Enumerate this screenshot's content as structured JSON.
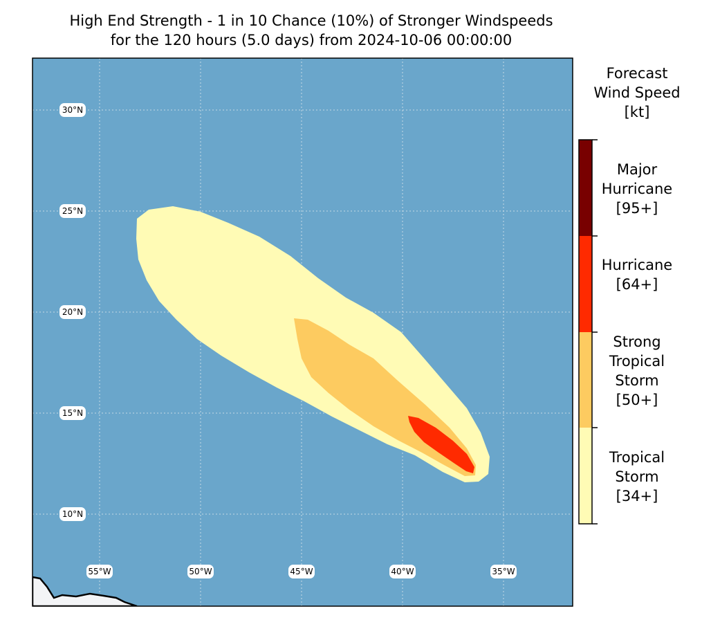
{
  "title": {
    "line1": "High End Strength - 1 in 10 Chance (10%) of Stronger Windspeeds",
    "line2": "for the 120 hours (5.0 days) from 2024-10-06 00:00:00"
  },
  "colors": {
    "ocean": "#6aa6cb",
    "land": "#f3f4f6",
    "tropical_storm": "#fffbb5",
    "strong_tropical_storm": "#fdcb60",
    "hurricane": "#ff2a00",
    "major_hurricane": "#780000"
  },
  "map": {
    "lat_labels": [
      "30°N",
      "25°N",
      "20°N",
      "15°N",
      "10°N"
    ],
    "lon_labels": [
      "55°W",
      "50°W",
      "45°W",
      "40°W",
      "35°W"
    ]
  },
  "legend": {
    "title_lines": [
      "Forecast",
      "Wind Speed",
      "[kt]"
    ],
    "categories": [
      {
        "name": "major-hurricane",
        "lines": [
          "Major",
          "Hurricane",
          "[95+]"
        ],
        "color": "#780000"
      },
      {
        "name": "hurricane",
        "lines": [
          "Hurricane",
          "[64+]"
        ],
        "color": "#ff2a00"
      },
      {
        "name": "strong-tropical-storm",
        "lines": [
          "Strong",
          "Tropical",
          "Storm",
          "[50+]"
        ],
        "color": "#fdcb60"
      },
      {
        "name": "tropical-storm",
        "lines": [
          "Tropical",
          "Storm",
          "[34+]"
        ],
        "color": "#fffbb5"
      }
    ]
  }
}
